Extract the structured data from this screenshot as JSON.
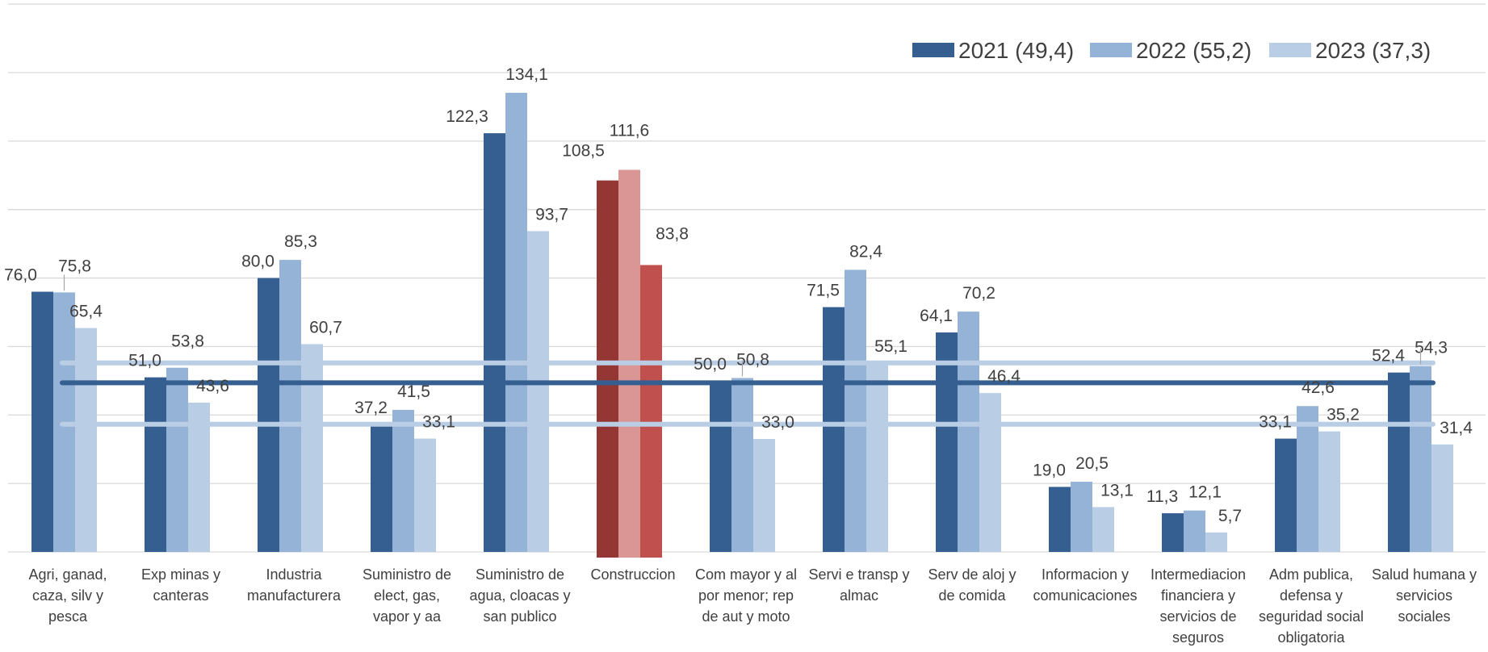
{
  "chart_data": {
    "type": "bar",
    "title": "",
    "xlabel": "",
    "ylabel": "",
    "ylim": [
      0,
      160
    ],
    "grid": true,
    "legend_position": "top-right",
    "categories": [
      [
        "Agri, ganad,",
        "caza, silv y",
        "pesca"
      ],
      [
        "Exp minas y",
        "canteras"
      ],
      [
        "Industria",
        "manufacturera"
      ],
      [
        "Suministro de",
        "elect, gas,",
        "vapor y aa"
      ],
      [
        "Suministro de",
        "agua, cloacas y",
        "san publico"
      ],
      [
        "Construccion"
      ],
      [
        "Com mayor y al",
        "por menor; rep",
        "de aut y moto"
      ],
      [
        "Servi e transp y",
        "almac"
      ],
      [
        "Serv de aloj y",
        "de comida"
      ],
      [
        "Informacion y",
        "comunicaciones"
      ],
      [
        "Intermediacion",
        "financiera y",
        "servicios de",
        "seguros"
      ],
      [
        "Adm publica,",
        "defensa y",
        "seguridad social",
        "obligatoria"
      ],
      [
        "Salud humana y",
        "servicios",
        "sociales"
      ]
    ],
    "series": [
      {
        "name": "2021 (49,4)",
        "color": "#355F91",
        "average": 49.4,
        "values": [
          76.0,
          51.0,
          80.0,
          37.2,
          122.3,
          108.5,
          50.0,
          71.5,
          64.1,
          19.0,
          11.3,
          33.1,
          52.4
        ],
        "labels": [
          "76,0",
          "51,0",
          "80,0",
          "37,2",
          "122,3",
          "108,5",
          "50,0",
          "71,5",
          "64,1",
          "19,0",
          "11,3",
          "33,1",
          "52,4"
        ]
      },
      {
        "name": "2022 (55,2)",
        "color": "#95B3D7",
        "average": 55.2,
        "values": [
          75.8,
          53.8,
          85.3,
          41.5,
          134.1,
          111.6,
          50.8,
          82.4,
          70.2,
          20.5,
          12.1,
          42.6,
          54.3
        ],
        "labels": [
          "75,8",
          "53,8",
          "85,3",
          "41,5",
          "134,1",
          "111,6",
          "50,8",
          "82,4",
          "70,2",
          "20,5",
          "12,1",
          "42,6",
          "54,3"
        ]
      },
      {
        "name": "2023 (37,3)",
        "color": "#B9CDE5",
        "average": 37.3,
        "values": [
          65.4,
          43.6,
          60.7,
          33.1,
          93.7,
          83.8,
          33.0,
          55.1,
          46.4,
          13.1,
          5.7,
          35.2,
          31.4
        ],
        "labels": [
          "65,4",
          "43,6",
          "60,7",
          "33,1",
          "93,7",
          "83,8",
          "33,0",
          "55,1",
          "46,4",
          "13,1",
          "5,7",
          "35,2",
          "31,4"
        ]
      }
    ],
    "highlight": {
      "category_index": 5,
      "colors": [
        "#943634",
        "#D99694",
        "#C0504D"
      ]
    },
    "average_line_colors": {
      "2021 (49,4)": "#355F91",
      "2022 (55,2)": "#B9CDE5",
      "2023 (37,3)": "#B9CDE5"
    }
  }
}
